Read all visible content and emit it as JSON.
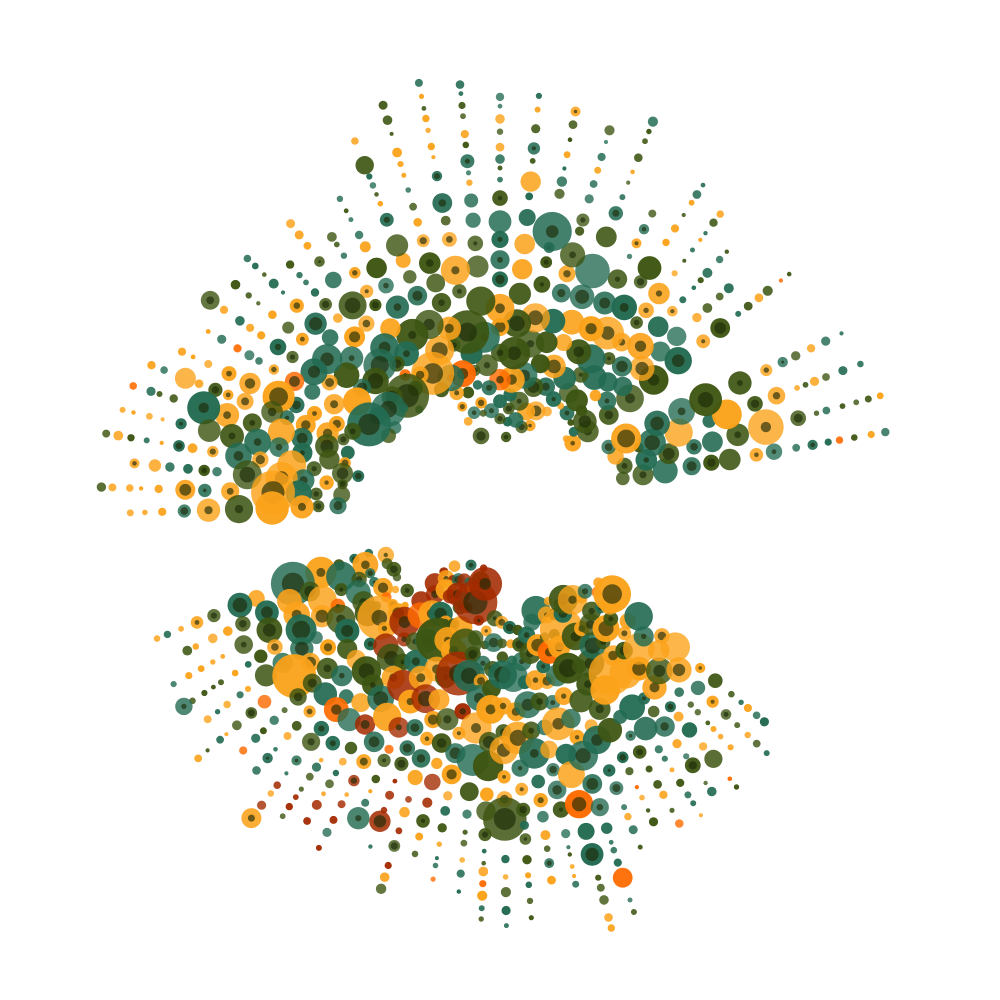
{
  "artwork": {
    "kind": "generative radial dot burst",
    "background": "#ffffff",
    "palette": {
      "orange": "#fba21a",
      "teal": "#236b52",
      "olive": "#3d5512",
      "rust": "#a32a00",
      "bright_orange": "#ff6a00",
      "core": "#1d2b08"
    }
  }
}
